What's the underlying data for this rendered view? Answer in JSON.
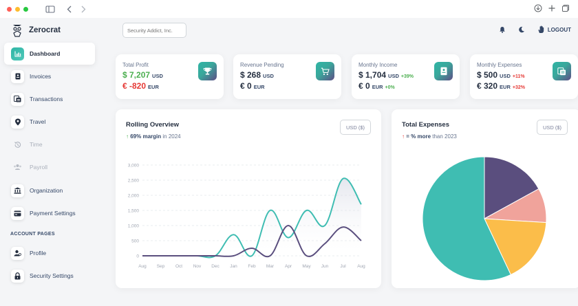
{
  "app": {
    "name": "Zerocrat"
  },
  "colors": {
    "teal": "#3fbdb2",
    "purple": "#5a4e7e",
    "salmon": "#f0a39b",
    "amber": "#fbbd4a",
    "green": "#4caf50",
    "red": "#e53935"
  },
  "sidebar": {
    "items": [
      {
        "label": "Dashboard",
        "icon": "chart-icon",
        "active": true
      },
      {
        "label": "Invoices",
        "icon": "invoice-icon"
      },
      {
        "label": "Transactions",
        "icon": "transactions-icon"
      },
      {
        "label": "Travel",
        "icon": "map-pin-icon"
      },
      {
        "label": "Time",
        "icon": "history-icon",
        "disabled": true
      },
      {
        "label": "Payroll",
        "icon": "users-icon",
        "disabled": true
      },
      {
        "label": "Organization",
        "icon": "building-icon"
      },
      {
        "label": "Payment Settings",
        "icon": "credit-card-icon"
      }
    ],
    "section_label": "ACCOUNT PAGES",
    "account_items": [
      {
        "label": "Profile",
        "icon": "user-icon"
      },
      {
        "label": "Security Settings",
        "icon": "lock-icon"
      }
    ]
  },
  "topbar": {
    "org_selector_placeholder": "Security Addict, Inc.",
    "logout_label": "LOGOUT"
  },
  "stats": [
    {
      "label": "Total Profit",
      "icon": "trophy-icon",
      "rows": [
        {
          "value": "$ 7,207",
          "currency": "USD",
          "value_color": "green"
        },
        {
          "value": "€ -820",
          "currency": "EUR",
          "value_color": "red"
        }
      ]
    },
    {
      "label": "Revenue Pending",
      "icon": "cart-icon",
      "rows": [
        {
          "value": "$ 268",
          "currency": "USD"
        },
        {
          "value": "€ 0",
          "currency": "EUR"
        }
      ]
    },
    {
      "label": "Monthly Income",
      "icon": "invoice-icon",
      "rows": [
        {
          "value": "$ 1,704",
          "currency": "USD",
          "change": "+39%",
          "change_color": "green"
        },
        {
          "value": "€ 0",
          "currency": "EUR",
          "change": "+0%",
          "change_color": "green"
        }
      ]
    },
    {
      "label": "Monthly Expenses",
      "icon": "receipt-icon",
      "rows": [
        {
          "value": "$ 500",
          "currency": "USD",
          "change": "+11%",
          "change_color": "red"
        },
        {
          "value": "€ 320",
          "currency": "EUR",
          "change": "+32%",
          "change_color": "red"
        }
      ]
    }
  ],
  "rolling": {
    "title": "Rolling Overview",
    "margin_value": "69% margin",
    "margin_suffix": " in 2024",
    "currency_select": "USD ($)"
  },
  "expenses": {
    "title": "Total Expenses",
    "sub_value": "= % more",
    "sub_suffix": " than 2023",
    "currency_select": "USD ($)"
  },
  "chart_data": [
    {
      "type": "line",
      "title": "Rolling Overview",
      "categories": [
        "Aug",
        "Sep",
        "Oct",
        "Nov",
        "Dec",
        "Jan",
        "Feb",
        "Mar",
        "Apr",
        "May",
        "Jun",
        "Jul",
        "Aug"
      ],
      "series": [
        {
          "values": [
            0,
            0,
            0,
            0,
            0,
            700,
            0,
            1500,
            600,
            1500,
            1000,
            2550,
            1700
          ],
          "color": "teal"
        },
        {
          "values": [
            0,
            0,
            0,
            0,
            0,
            0,
            250,
            0,
            1000,
            0,
            400,
            950,
            500
          ],
          "color": "purple"
        }
      ],
      "yticks": [
        "3,000",
        "2,500",
        "2,000",
        "1,500",
        "1,000",
        "500",
        "0"
      ],
      "ylim": [
        0,
        3000
      ],
      "grid": true
    },
    {
      "type": "pie",
      "title": "Total Expenses",
      "slices": [
        {
          "value": 17,
          "color": "purple"
        },
        {
          "value": 9,
          "color": "salmon"
        },
        {
          "value": 17,
          "color": "amber"
        },
        {
          "value": 57,
          "color": "teal"
        }
      ]
    }
  ]
}
